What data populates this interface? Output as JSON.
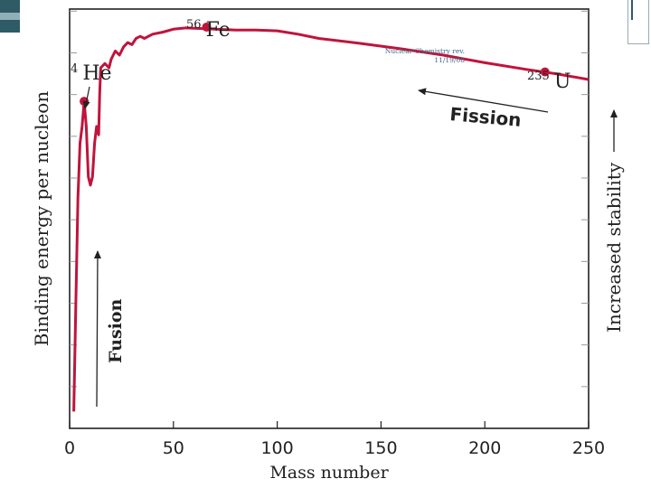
{
  "slide": {
    "footer_title": "Nuclear Chemistry rev.",
    "footer_date": "11/19/08"
  },
  "colors": {
    "curve": "#c0143c",
    "axis": "#222222",
    "grid": "#9a9a9a",
    "text": "#222222"
  },
  "chart_data": {
    "type": "line",
    "xlabel": "Mass number",
    "ylabel": "Binding energy per nucleon",
    "xlim": [
      0,
      250
    ],
    "xticks": [
      0,
      50,
      100,
      150,
      200,
      250
    ],
    "ytick_count": 10,
    "grid": false,
    "series": [
      {
        "points": [
          [
            2,
            0.04
          ],
          [
            3,
            0.3
          ],
          [
            4,
            0.55
          ],
          [
            5,
            0.68
          ],
          [
            6,
            0.72
          ],
          [
            7,
            0.78
          ],
          [
            8,
            0.72
          ],
          [
            9,
            0.6
          ],
          [
            10,
            0.58
          ],
          [
            11,
            0.6
          ],
          [
            12,
            0.68
          ],
          [
            13,
            0.72
          ],
          [
            14,
            0.7
          ],
          [
            14.5,
            0.8
          ],
          [
            15,
            0.86
          ],
          [
            17,
            0.87
          ],
          [
            19,
            0.86
          ],
          [
            20,
            0.88
          ],
          [
            22,
            0.9
          ],
          [
            24,
            0.89
          ],
          [
            26,
            0.91
          ],
          [
            28,
            0.92
          ],
          [
            30,
            0.915
          ],
          [
            32,
            0.93
          ],
          [
            34,
            0.935
          ],
          [
            36,
            0.93
          ],
          [
            40,
            0.94
          ],
          [
            45,
            0.945
          ],
          [
            50,
            0.952
          ],
          [
            56,
            0.955
          ],
          [
            60,
            0.954
          ],
          [
            70,
            0.952
          ],
          [
            80,
            0.95
          ],
          [
            90,
            0.95
          ],
          [
            100,
            0.948
          ],
          [
            110,
            0.94
          ],
          [
            120,
            0.93
          ],
          [
            140,
            0.918
          ],
          [
            160,
            0.905
          ],
          [
            180,
            0.89
          ],
          [
            200,
            0.872
          ],
          [
            220,
            0.856
          ],
          [
            235,
            0.845
          ],
          [
            250,
            0.832
          ]
        ]
      }
    ],
    "highlighted_points": [
      {
        "label_mass": "4",
        "label_symbol": "He",
        "x": 7,
        "y": 0.78
      },
      {
        "label_mass": "56",
        "label_symbol": "Fe",
        "x": 66,
        "y": 0.957
      },
      {
        "label_mass": "235",
        "label_symbol": "U",
        "x": 229,
        "y": 0.85
      }
    ],
    "annotations": {
      "fission": "Fission",
      "fusion": "Fusion",
      "stability": "Increased stability"
    }
  }
}
